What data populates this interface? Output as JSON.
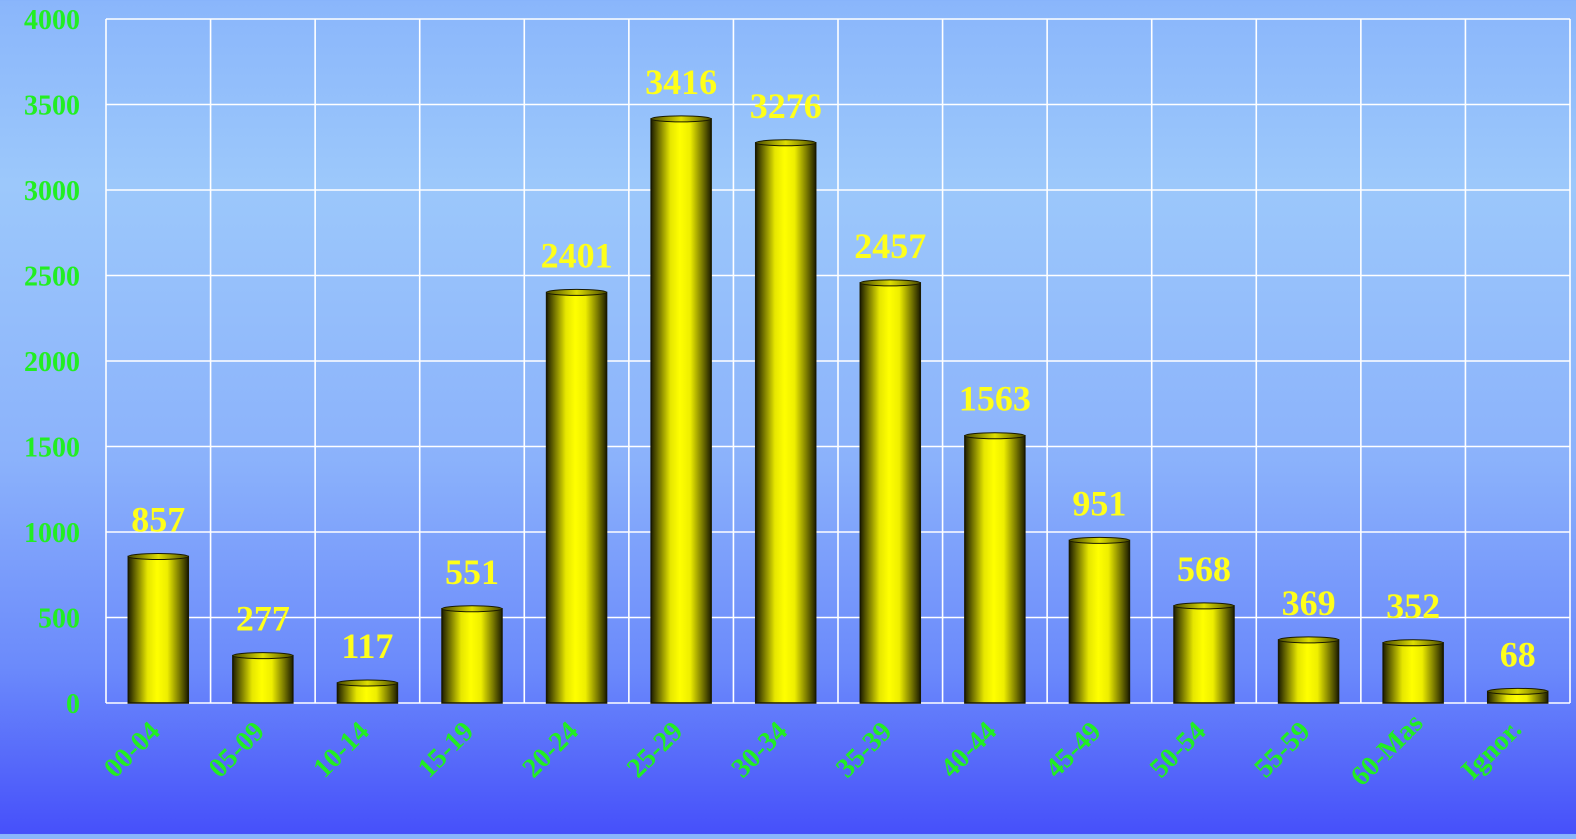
{
  "chart_data": {
    "type": "bar",
    "categories": [
      "00-04",
      "05-09",
      "10-14",
      "15-19",
      "20-24",
      "25-29",
      "30-34",
      "35-39",
      "40-44",
      "45-49",
      "50-54",
      "55-59",
      "60-Mas",
      "Ignor."
    ],
    "values": [
      857,
      277,
      117,
      551,
      2401,
      3416,
      3276,
      2457,
      1563,
      951,
      568,
      369,
      352,
      68
    ],
    "data_labels": [
      "857",
      "277",
      "117",
      "551",
      "2401",
      "3416",
      "3276",
      "2457",
      "1563",
      "951",
      "568",
      "369",
      "352",
      "68"
    ],
    "yticks": [
      "0",
      "500",
      "1000",
      "1500",
      "2000",
      "2500",
      "3000",
      "3500",
      "4000"
    ],
    "ylim": [
      0,
      4000
    ],
    "grid": true,
    "colors": {
      "bar": "#ffff00",
      "bar_edge": "#1a1a00",
      "data_label": "#ffff1a",
      "axis_label": "#22ee22",
      "grid": "#ffffff"
    }
  }
}
